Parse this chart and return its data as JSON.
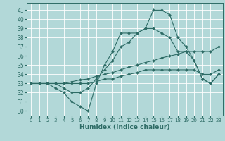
{
  "xlabel": "Humidex (Indice chaleur)",
  "background_color": "#b2d8d8",
  "grid_color": "#ffffff",
  "line_color": "#2d6b65",
  "xlim": [
    -0.5,
    23.5
  ],
  "ylim": [
    29.5,
    41.8
  ],
  "yticks": [
    30,
    31,
    32,
    33,
    34,
    35,
    36,
    37,
    38,
    39,
    40,
    41
  ],
  "xticks": [
    0,
    1,
    2,
    3,
    4,
    5,
    6,
    7,
    8,
    9,
    10,
    11,
    12,
    13,
    14,
    15,
    16,
    17,
    18,
    19,
    20,
    21,
    22,
    23
  ],
  "series": [
    [
      33.0,
      33.0,
      33.0,
      32.5,
      32.0,
      31.0,
      30.5,
      30.0,
      33.0,
      35.0,
      36.5,
      38.5,
      38.5,
      38.5,
      39.0,
      41.0,
      41.0,
      40.5,
      38.0,
      37.0,
      35.5,
      33.5,
      33.0,
      34.0
    ],
    [
      33.0,
      33.0,
      33.0,
      33.0,
      32.5,
      32.0,
      32.0,
      32.5,
      33.5,
      34.5,
      35.5,
      37.0,
      37.5,
      38.5,
      39.0,
      39.0,
      38.5,
      38.0,
      36.5,
      36.5,
      35.5,
      33.5,
      33.0,
      34.0
    ],
    [
      33.0,
      33.0,
      33.0,
      33.0,
      33.0,
      33.2,
      33.4,
      33.5,
      33.8,
      34.0,
      34.2,
      34.5,
      34.8,
      35.0,
      35.3,
      35.5,
      35.8,
      36.0,
      36.2,
      36.5,
      36.5,
      36.5,
      36.5,
      37.0
    ],
    [
      33.0,
      33.0,
      33.0,
      33.0,
      33.0,
      33.0,
      33.0,
      33.0,
      33.2,
      33.5,
      33.5,
      33.8,
      34.0,
      34.2,
      34.5,
      34.5,
      34.5,
      34.5,
      34.5,
      34.5,
      34.5,
      34.0,
      34.0,
      34.5
    ]
  ]
}
